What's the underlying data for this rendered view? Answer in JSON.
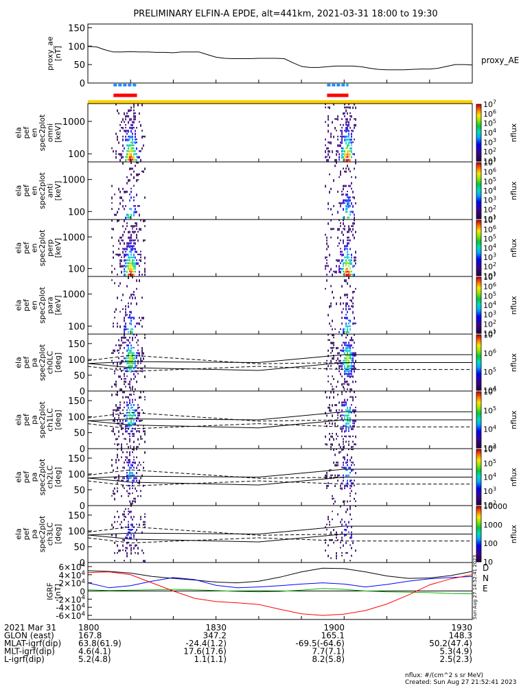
{
  "title": "PRELIMINARY ELFIN-A EPDE, alt=441km, 2021-03-31 18:00 to 19:30",
  "chart_data": {
    "type": "spectrogram",
    "x_range_min": [
      0,
      90
    ],
    "x_ticks": [
      "1800",
      "1830",
      "1900",
      "1930"
    ],
    "ae": {
      "ylabel": "proxy_ae\n[nT]",
      "legend": "proxy_AE",
      "yticks": [
        "0",
        "50",
        "100",
        "150"
      ],
      "ylim": [
        0,
        160
      ],
      "t": [
        0,
        2,
        4,
        6,
        8,
        10,
        12,
        14,
        16,
        18,
        20,
        22,
        24,
        26,
        28,
        30,
        32,
        34,
        36,
        38,
        40,
        42,
        44,
        46,
        48,
        50,
        52,
        54,
        56,
        58,
        60,
        62,
        64,
        66,
        68,
        70,
        72,
        74,
        76,
        78,
        80,
        82,
        84,
        86,
        88,
        90
      ],
      "v": [
        99,
        98,
        90,
        84,
        84,
        85,
        84,
        84,
        83,
        83,
        82,
        84,
        84,
        84,
        77,
        70,
        67,
        66,
        66,
        66,
        67,
        67,
        67,
        66,
        55,
        45,
        42,
        42,
        44,
        46,
        46,
        46,
        44,
        40,
        37,
        36,
        36,
        36,
        37,
        38,
        38,
        40,
        45,
        50,
        50,
        49
      ]
    },
    "flags": {
      "blue_segments_min": [
        [
          6,
          11.5
        ],
        [
          56,
          61
        ]
      ],
      "red_segments_min": [
        [
          6,
          11.5
        ],
        [
          56,
          61
        ]
      ]
    },
    "panels": [
      {
        "ylabel": "ela\npef\nen\nspec2plot\nomni\n[keV]",
        "yticks": [
          "100",
          "1000"
        ],
        "cb_label": "nflux",
        "cb_ticks": [
          "10^1",
          "10^2",
          "10^3",
          "10^4",
          "10^5",
          "10^6",
          "10^7"
        ],
        "cb_range": [
          1,
          7
        ],
        "kind": "energy",
        "intensity": 1.0
      },
      {
        "ylabel": "ela\npef\nen\nspec2plot\nanti\n[keV]",
        "yticks": [
          "100",
          "1000"
        ],
        "cb_label": "nflux",
        "cb_ticks": [
          "10^1",
          "10^2",
          "10^3",
          "10^4",
          "10^5",
          "10^6",
          "10^7"
        ],
        "cb_range": [
          1,
          7
        ],
        "kind": "energy",
        "intensity": 0.55
      },
      {
        "ylabel": "ela\npef\nen\nspec2plot\nperp\n[keV]",
        "yticks": [
          "100",
          "1000"
        ],
        "cb_label": "nflux",
        "cb_ticks": [
          "10^1",
          "10^2",
          "10^3",
          "10^4",
          "10^5",
          "10^6",
          "10^7"
        ],
        "cb_range": [
          1,
          7
        ],
        "kind": "energy",
        "intensity": 1.0
      },
      {
        "ylabel": "ela\npef\nen\nspec2plot\npara\n[keV]",
        "yticks": [
          "100",
          "1000"
        ],
        "cb_label": "nflux",
        "cb_ticks": [
          "10^1",
          "10^2",
          "10^3",
          "10^4",
          "10^5",
          "10^6",
          "10^7"
        ],
        "cb_range": [
          1,
          7
        ],
        "kind": "energy",
        "intensity": 0.5
      },
      {
        "ylabel": "ela\npef\npa\nspec2plot\nch0LC\n[deg]",
        "yticks": [
          "0",
          "50",
          "100",
          "150"
        ],
        "cb_label": "nflux",
        "cb_ticks": [
          "10^4",
          "10^5",
          "10^6",
          "10^7"
        ],
        "cb_range": [
          3.5,
          7
        ],
        "kind": "pitch",
        "intensity": 1.0
      },
      {
        "ylabel": "ela\npef\npa\nspec2plot\nch1LC\n[deg]",
        "yticks": [
          "0",
          "50",
          "100",
          "150"
        ],
        "cb_label": "nflux",
        "cb_ticks": [
          "10^3",
          "10^4",
          "10^5",
          "10^6"
        ],
        "cb_range": [
          3,
          6.5
        ],
        "kind": "pitch",
        "intensity": 0.8
      },
      {
        "ylabel": "ela\npef\npa\nspec2plot\nch2LC\n[deg]",
        "yticks": [
          "0",
          "50",
          "100",
          "150"
        ],
        "cb_label": "nflux",
        "cb_ticks": [
          "10^2",
          "10^3",
          "10^4",
          "10^5",
          "10^6"
        ],
        "cb_range": [
          2,
          6.2
        ],
        "kind": "pitch",
        "intensity": 0.55
      },
      {
        "ylabel": "ela\npef\npa\nspec2plot\nch3LC\n[deg]",
        "yticks": [
          "0",
          "50",
          "100",
          "150"
        ],
        "cb_label": "nflux",
        "cb_ticks": [
          "10",
          "100",
          "1000",
          "10000"
        ],
        "cb_range": [
          1,
          4.3
        ],
        "kind": "pitch",
        "intensity": 0.4
      }
    ],
    "lc_curves": {
      "t": [
        0,
        10,
        40,
        60,
        90
      ],
      "upper_solid": [
        87,
        93,
        90,
        115,
        115
      ],
      "lower_solid": [
        87,
        74,
        65,
        90,
        90
      ],
      "upper_dashed": [
        96,
        113,
        86,
        90,
        90
      ],
      "lower_dashed": [
        78,
        62,
        78,
        68,
        68
      ]
    },
    "igrf": {
      "ylabel": "IGRF\n[nT]",
      "yticks": [
        "-6×10^4",
        "-4×10^4",
        "-2×10^4",
        "0",
        "2×10^4",
        "4×10^4",
        "6×10^4"
      ],
      "ylim": [
        -70000,
        70000
      ],
      "legend": [
        "D",
        "N",
        "E"
      ],
      "t": [
        0,
        5,
        10,
        15,
        20,
        25,
        30,
        35,
        40,
        45,
        50,
        55,
        60,
        65,
        70,
        75,
        80,
        85,
        90
      ],
      "D": [
        45000,
        47000,
        40000,
        20000,
        0,
        -18000,
        -26000,
        -29000,
        -33000,
        -45000,
        -56000,
        -60000,
        -57000,
        -48000,
        -32000,
        -10000,
        15000,
        30000,
        40000
      ],
      "N": [
        20000,
        8000,
        13000,
        24000,
        33000,
        28000,
        14000,
        8000,
        10000,
        13000,
        17000,
        20000,
        17000,
        10000,
        16000,
        24000,
        30000,
        33000,
        36000
      ],
      "E": [
        3000,
        1000,
        2000,
        3000,
        4000,
        3000,
        1000,
        -1000,
        -2000,
        -1000,
        2000,
        6000,
        4000,
        0,
        -2000,
        -3000,
        -4000,
        -6000,
        -7000
      ],
      "total": [
        50000,
        48000,
        44000,
        36000,
        31000,
        27000,
        22000,
        20000,
        24000,
        34000,
        47000,
        56000,
        55000,
        47000,
        37000,
        31000,
        32000,
        38000,
        48000
      ],
      "stamp": "Sun Aug 27 14:52:41 2023"
    }
  },
  "ephem": {
    "rows": [
      {
        "label": "2021 Mar 31",
        "vals": [
          "1800",
          "1830",
          "1900",
          "1930"
        ]
      },
      {
        "label": "GLON (east)",
        "vals": [
          "167.8",
          "347.2",
          "165.1",
          "148.3"
        ]
      },
      {
        "label": "MLAT-igrf(dip)",
        "vals": [
          "63.8(61.9)",
          "-24.4(1.2)",
          "-69.5(-64.6)",
          "50.2(47.4)"
        ]
      },
      {
        "label": "MLT-igrf(dip)",
        "vals": [
          "4.6(4.1)",
          "17.6(17.6)",
          "7.7(7.1)",
          "5.3(4.9)"
        ]
      },
      {
        "label": "L-igrf(dip)",
        "vals": [
          "5.2(4.8)",
          "1.1(1.1)",
          "8.2(5.8)",
          "2.5(2.3)"
        ]
      }
    ]
  },
  "footer": {
    "units": "nflux: #/(cm^2 s sr MeV)",
    "created": "Created: Sun Aug 27 21:52:41 2023"
  }
}
